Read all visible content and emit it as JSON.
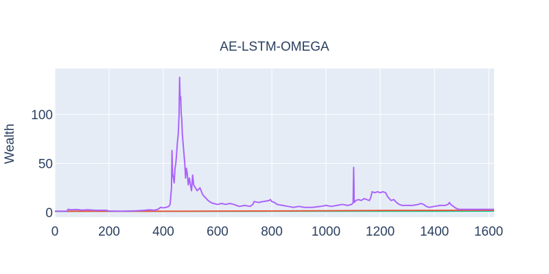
{
  "chart_data": {
    "type": "line",
    "title": "AE-LSTM-OMEGA",
    "xlabel": "",
    "ylabel": "Wealth",
    "xlim": [
      0,
      1620
    ],
    "ylim": [
      -5,
      147
    ],
    "x_ticks": [
      0,
      200,
      400,
      600,
      800,
      1000,
      1200,
      1400,
      1600
    ],
    "y_ticks": [
      0,
      50,
      100
    ],
    "grid": true,
    "legend": "none",
    "colors": {
      "plot_background": "#e5ecf6",
      "grid": "#ffffff",
      "text": "#2a3f5f"
    },
    "series": [
      {
        "color": "#ab63fa",
        "points": [
          [
            0,
            1
          ],
          [
            45,
            1
          ],
          [
            48,
            3
          ],
          [
            60,
            2.5
          ],
          [
            80,
            2.8
          ],
          [
            100,
            2.2
          ],
          [
            120,
            2.5
          ],
          [
            150,
            2
          ],
          [
            190,
            2
          ],
          [
            200,
            1.2
          ],
          [
            250,
            1
          ],
          [
            300,
            1.5
          ],
          [
            330,
            2
          ],
          [
            350,
            2.5
          ],
          [
            365,
            2
          ],
          [
            380,
            3
          ],
          [
            390,
            5
          ],
          [
            400,
            4.5
          ],
          [
            410,
            5
          ],
          [
            420,
            6
          ],
          [
            425,
            8
          ],
          [
            430,
            25
          ],
          [
            432,
            63
          ],
          [
            434,
            40
          ],
          [
            437,
            35
          ],
          [
            440,
            30
          ],
          [
            443,
            45
          ],
          [
            446,
            50
          ],
          [
            449,
            60
          ],
          [
            452,
            72
          ],
          [
            455,
            80
          ],
          [
            458,
            100
          ],
          [
            460,
            138
          ],
          [
            462,
            115
          ],
          [
            464,
            118
          ],
          [
            466,
            100
          ],
          [
            468,
            95
          ],
          [
            470,
            80
          ],
          [
            473,
            70
          ],
          [
            476,
            60
          ],
          [
            479,
            50
          ],
          [
            482,
            35
          ],
          [
            485,
            45
          ],
          [
            488,
            40
          ],
          [
            492,
            28
          ],
          [
            496,
            35
          ],
          [
            500,
            28
          ],
          [
            504,
            22
          ],
          [
            508,
            38
          ],
          [
            512,
            28
          ],
          [
            518,
            25
          ],
          [
            525,
            22
          ],
          [
            535,
            25
          ],
          [
            545,
            18
          ],
          [
            555,
            15
          ],
          [
            565,
            12
          ],
          [
            575,
            10
          ],
          [
            585,
            9
          ],
          [
            600,
            8
          ],
          [
            615,
            9
          ],
          [
            630,
            8
          ],
          [
            645,
            9
          ],
          [
            660,
            8
          ],
          [
            680,
            6
          ],
          [
            700,
            7
          ],
          [
            720,
            6
          ],
          [
            730,
            8
          ],
          [
            735,
            11
          ],
          [
            750,
            10
          ],
          [
            770,
            11
          ],
          [
            790,
            12
          ],
          [
            795,
            13
          ],
          [
            800,
            11
          ],
          [
            810,
            10
          ],
          [
            820,
            8
          ],
          [
            840,
            7
          ],
          [
            860,
            6
          ],
          [
            880,
            5
          ],
          [
            900,
            6
          ],
          [
            920,
            5
          ],
          [
            950,
            5
          ],
          [
            980,
            6
          ],
          [
            1000,
            7
          ],
          [
            1020,
            6
          ],
          [
            1040,
            7
          ],
          [
            1060,
            8
          ],
          [
            1080,
            7
          ],
          [
            1095,
            8
          ],
          [
            1100,
            10
          ],
          [
            1101,
            30
          ],
          [
            1102,
            46
          ],
          [
            1103,
            30
          ],
          [
            1104,
            10
          ],
          [
            1110,
            12
          ],
          [
            1120,
            13
          ],
          [
            1130,
            12
          ],
          [
            1140,
            14
          ],
          [
            1150,
            13
          ],
          [
            1160,
            12
          ],
          [
            1165,
            15
          ],
          [
            1170,
            21
          ],
          [
            1180,
            20
          ],
          [
            1190,
            21
          ],
          [
            1200,
            20
          ],
          [
            1210,
            21
          ],
          [
            1220,
            20
          ],
          [
            1225,
            17
          ],
          [
            1230,
            15
          ],
          [
            1240,
            12
          ],
          [
            1250,
            13
          ],
          [
            1260,
            10
          ],
          [
            1270,
            8
          ],
          [
            1280,
            7
          ],
          [
            1300,
            7
          ],
          [
            1320,
            7
          ],
          [
            1340,
            8
          ],
          [
            1350,
            9
          ],
          [
            1360,
            8
          ],
          [
            1370,
            6
          ],
          [
            1380,
            5
          ],
          [
            1400,
            6
          ],
          [
            1420,
            7
          ],
          [
            1440,
            7
          ],
          [
            1450,
            8
          ],
          [
            1455,
            10
          ],
          [
            1460,
            8
          ],
          [
            1470,
            6
          ],
          [
            1480,
            4
          ],
          [
            1490,
            3
          ],
          [
            1500,
            3
          ],
          [
            1550,
            3
          ],
          [
            1600,
            3
          ],
          [
            1620,
            3
          ]
        ]
      },
      {
        "color": "#EF553B",
        "points": [
          [
            0,
            1
          ],
          [
            400,
            1
          ],
          [
            800,
            1.3
          ],
          [
            1200,
            1.8
          ],
          [
            1620,
            2
          ]
        ]
      },
      {
        "color": "#00cc96",
        "points": [
          [
            0,
            0.8
          ],
          [
            400,
            0.9
          ],
          [
            800,
            1
          ],
          [
            1200,
            1
          ],
          [
            1620,
            1.1
          ]
        ]
      }
    ]
  }
}
